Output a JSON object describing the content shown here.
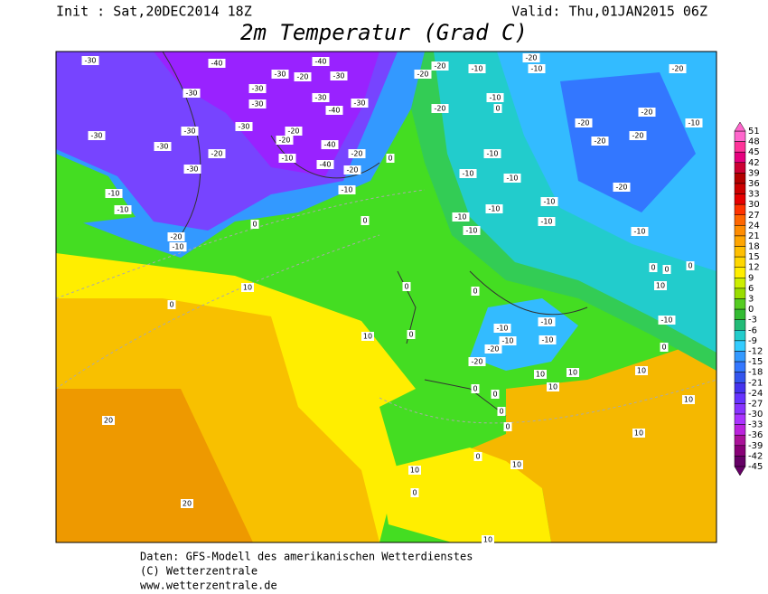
{
  "header": {
    "init": "Init : Sat,20DEC2014 18Z",
    "valid": "Valid: Thu,01JAN2015 06Z",
    "title": "2m Temperatur (Grad C)"
  },
  "map": {
    "labels": [
      -30,
      -40,
      -30,
      -30,
      -30,
      -20,
      -30,
      -30,
      -40,
      -30,
      -40,
      -30,
      -30,
      -30,
      -30,
      -30,
      -20,
      -30,
      -20,
      -20,
      -10,
      -40,
      -20,
      -40,
      -20,
      0,
      -10,
      -10,
      -10,
      -20,
      -10,
      0,
      0,
      -20,
      -20,
      -20,
      -10,
      -10,
      0,
      -20,
      -10,
      -20,
      -20,
      -20,
      -10,
      -20,
      -20,
      -20,
      -10,
      -10,
      -10,
      -10,
      -10,
      -10,
      -10,
      -10,
      -10,
      0,
      0,
      0,
      10,
      0,
      0,
      0,
      10,
      -10,
      -10,
      -10,
      -10,
      -10,
      -20,
      -20,
      10,
      0,
      0,
      10,
      10,
      10,
      10,
      0,
      0,
      0,
      10,
      20,
      10,
      0,
      10,
      10,
      0,
      0,
      20,
      10
    ]
  },
  "colorbar": {
    "labels": [
      51,
      48,
      45,
      42,
      39,
      36,
      33,
      30,
      27,
      24,
      21,
      18,
      15,
      12,
      9,
      6,
      3,
      0,
      -3,
      -6,
      -9,
      -12,
      -15,
      -18,
      -21,
      -24,
      -27,
      -30,
      -33,
      -36,
      -39,
      -42,
      -45
    ],
    "colors": [
      "#ff66cc",
      "#ff3399",
      "#e6007e",
      "#cc0033",
      "#b30000",
      "#cc0000",
      "#e60000",
      "#ff3300",
      "#ff6600",
      "#ff8c00",
      "#ffa500",
      "#ffbf00",
      "#ffd700",
      "#ffee00",
      "#ccee00",
      "#99dd00",
      "#55cc22",
      "#33bb33",
      "#22bb77",
      "#22cccc",
      "#33ccff",
      "#3399ff",
      "#3377ff",
      "#3355ee",
      "#4433ee",
      "#6633ff",
      "#8833ff",
      "#aa33ff",
      "#bb22dd",
      "#aa1199",
      "#880077",
      "#660066"
    ]
  },
  "footer": {
    "lines": [
      "Daten: GFS-Modell des amerikanischen Wetterdienstes",
      "(C) Wetterzentrale",
      "www.wetterzentrale.de"
    ]
  }
}
